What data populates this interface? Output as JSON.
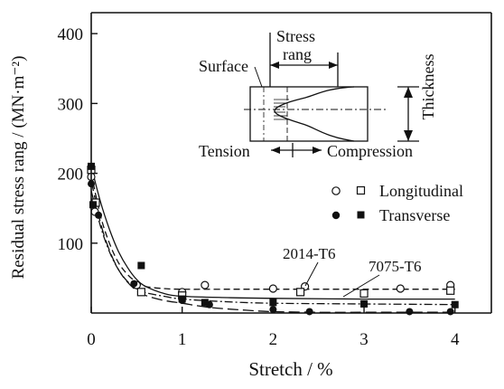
{
  "chart_data": {
    "type": "scatter",
    "title": "",
    "xlabel": "Stretch  /   %",
    "ylabel": "Residual stress rang / (MN·m⁻²)",
    "xlim": [
      0,
      4.4
    ],
    "ylim": [
      0,
      430
    ],
    "xticks": [
      0,
      1,
      2,
      3,
      4
    ],
    "yticks": [
      100,
      200,
      300,
      400
    ],
    "xtick_labels": [
      "0",
      "1",
      "2",
      "3",
      "4"
    ],
    "ytick_labels": [
      "100",
      "200",
      "300",
      "400"
    ],
    "grid": false,
    "legend": {
      "placement": "right",
      "entries": [
        {
          "label": "Longitudinal",
          "markers": [
            "open-circle",
            "open-square"
          ]
        },
        {
          "label": "Transverse",
          "markers": [
            "filled-circle",
            "filled-square"
          ]
        }
      ]
    },
    "series": [
      {
        "marker": "open-circle",
        "points": [
          [
            0,
            195
          ],
          [
            0.04,
            145
          ],
          [
            0.5,
            40
          ],
          [
            1.0,
            30
          ],
          [
            1.25,
            40
          ],
          [
            2.0,
            35
          ],
          [
            2.35,
            38
          ],
          [
            3.4,
            35
          ],
          [
            3.95,
            40
          ]
        ]
      },
      {
        "marker": "open-square",
        "points": [
          [
            0,
            205
          ],
          [
            0.05,
            158
          ],
          [
            0.55,
            30
          ],
          [
            1.0,
            25
          ],
          [
            2.3,
            30
          ],
          [
            3.0,
            28
          ],
          [
            3.95,
            32
          ]
        ]
      },
      {
        "marker": "filled-circle",
        "points": [
          [
            0,
            185
          ],
          [
            0.08,
            140
          ],
          [
            0.47,
            42
          ],
          [
            1.0,
            18
          ],
          [
            1.3,
            12
          ],
          [
            2.0,
            5
          ],
          [
            2.4,
            2
          ],
          [
            3.5,
            2
          ],
          [
            3.95,
            2
          ]
        ]
      },
      {
        "marker": "filled-square",
        "points": [
          [
            0,
            210
          ],
          [
            0.02,
            155
          ],
          [
            0.55,
            68
          ],
          [
            1.0,
            20
          ],
          [
            1.25,
            15
          ],
          [
            2.0,
            15
          ],
          [
            3.0,
            13
          ],
          [
            4.0,
            12
          ]
        ]
      }
    ],
    "curves": [
      {
        "style": "dashed",
        "x": [
          0,
          0.1,
          0.2,
          0.3,
          0.4,
          0.5,
          0.6,
          0.8,
          1.0,
          1.5,
          2.0,
          3.0,
          4.0
        ],
        "y": [
          200,
          140,
          100,
          72,
          55,
          44,
          38,
          35,
          34,
          34,
          34,
          34,
          34
        ]
      },
      {
        "style": "solid",
        "x": [
          0,
          0.1,
          0.2,
          0.3,
          0.4,
          0.5,
          0.6,
          0.8,
          1.0,
          1.5,
          2.0,
          3.0,
          4.0
        ],
        "y": [
          210,
          160,
          120,
          88,
          65,
          48,
          38,
          28,
          24,
          22,
          21,
          20,
          20
        ]
      },
      {
        "style": "dash-dot",
        "x": [
          0,
          0.1,
          0.2,
          0.3,
          0.4,
          0.5,
          0.6,
          0.8,
          1.0,
          1.5,
          2.0,
          3.0,
          4.0
        ],
        "y": [
          175,
          125,
          88,
          62,
          45,
          35,
          29,
          24,
          20,
          16,
          14,
          13,
          12
        ]
      },
      {
        "style": "long-dash",
        "x": [
          0,
          0.1,
          0.2,
          0.3,
          0.4,
          0.5,
          0.6,
          0.8,
          1.0,
          1.3,
          1.7,
          2.0,
          2.5,
          3.0,
          4.0
        ],
        "y": [
          190,
          130,
          90,
          62,
          44,
          32,
          25,
          18,
          14,
          8,
          4,
          2,
          1,
          1,
          1
        ]
      }
    ],
    "annotations": [
      {
        "text": "2014-T6",
        "x": 2.05,
        "y": 80
      },
      {
        "text": "7075-T6",
        "x": 3.05,
        "y": 65
      }
    ],
    "inset": {
      "labels": {
        "stress": "Stress",
        "rang": "rang",
        "surface": "Surface",
        "thickness": "Thickness",
        "tension": "Tension",
        "compression": "Compression"
      }
    }
  }
}
